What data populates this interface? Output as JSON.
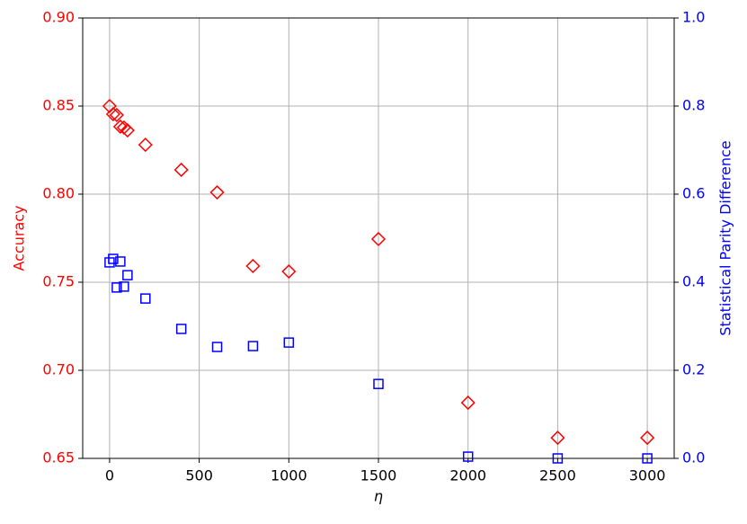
{
  "chart_data": {
    "type": "scatter",
    "xlabel": "η",
    "ylabel": "Accuracy",
    "y2label": "Statistical Parity Difference",
    "x": [
      0,
      20,
      40,
      60,
      80,
      100,
      200,
      400,
      600,
      800,
      1000,
      1500,
      2000,
      2500,
      3000
    ],
    "series": [
      {
        "color": "#ff0000",
        "marker": "diamond",
        "axis": "y",
        "values": [
          0.85,
          0.8454,
          0.8449,
          0.8383,
          0.8378,
          0.8362,
          0.828,
          0.8138,
          0.801,
          0.7592,
          0.7561,
          0.7745,
          0.6816,
          0.6617,
          0.6617
        ]
      },
      {
        "color": "#0000ff",
        "marker": "square",
        "axis": "y2",
        "values": [
          0.445,
          0.453,
          0.388,
          0.447,
          0.39,
          0.416,
          0.363,
          0.294,
          0.253,
          0.255,
          0.263,
          0.169,
          0.004,
          0.0,
          0.0
        ]
      }
    ],
    "xlim": [
      -150,
      3150
    ],
    "xticks": [
      0,
      500,
      1000,
      1500,
      2000,
      2500,
      3000
    ],
    "ylim": [
      0.65,
      0.9
    ],
    "yticks": [
      {
        "value": 0.65,
        "label": "0.65"
      },
      {
        "value": 0.7,
        "label": "0.70"
      },
      {
        "value": 0.75,
        "label": "0.75"
      },
      {
        "value": 0.8,
        "label": "0.80"
      },
      {
        "value": 0.85,
        "label": "0.85"
      },
      {
        "value": 0.9,
        "label": "0.90"
      }
    ],
    "y2lim": [
      0,
      1
    ],
    "y2ticks": [
      {
        "value": 0,
        "label": "0.0"
      },
      0.2,
      0.4,
      0.6,
      0.8,
      {
        "value": 1,
        "label": "1.0"
      }
    ],
    "grid": true
  }
}
